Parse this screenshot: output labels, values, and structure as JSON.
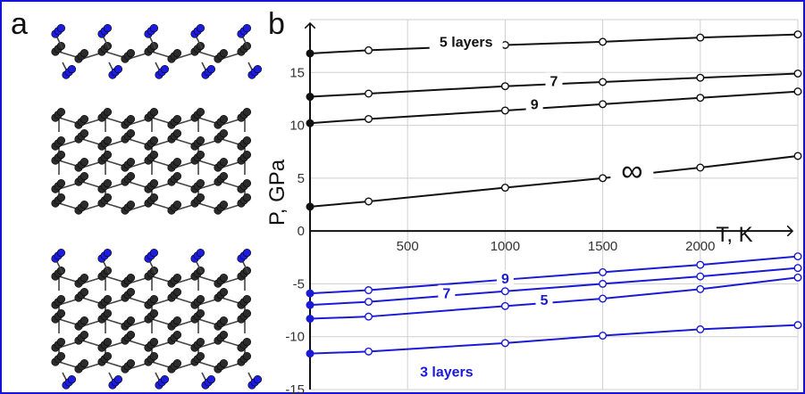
{
  "panels": {
    "a": "a",
    "b": "b"
  },
  "colors": {
    "black": "#111111",
    "blue": "#1a1ad6",
    "grid": "#cfcfcf",
    "frame": "#1414d8",
    "atom_black": "#2b2b2b",
    "atom_blue": "#1c1ce0"
  },
  "structure_icons": [
    "diamane-slab-icon",
    "diamond-bulk-icon",
    "diamane-slab-icon"
  ],
  "chart_data": {
    "type": "line",
    "xlabel": "T, K",
    "ylabel": "P, GPa",
    "xlim": [
      0,
      2500
    ],
    "ylim": [
      -15,
      20
    ],
    "xticks": [
      500,
      1000,
      1500,
      2000
    ],
    "yticks": [
      -15,
      -10,
      -5,
      0,
      5,
      10,
      15
    ],
    "grid": true,
    "series": [
      {
        "name": "5 layers",
        "color": "#111111",
        "x": [
          0,
          300,
          1000,
          1500,
          2000,
          2500
        ],
        "y": [
          16.8,
          17.1,
          17.6,
          17.9,
          18.3,
          18.6
        ]
      },
      {
        "name": "7",
        "color": "#111111",
        "x": [
          0,
          300,
          1000,
          1500,
          2000,
          2500
        ],
        "y": [
          12.7,
          13.0,
          13.7,
          14.1,
          14.5,
          14.9
        ]
      },
      {
        "name": "9",
        "color": "#111111",
        "x": [
          0,
          300,
          1000,
          1500,
          2000,
          2500
        ],
        "y": [
          10.2,
          10.6,
          11.4,
          12.0,
          12.6,
          13.2
        ]
      },
      {
        "name": "∞",
        "color": "#111111",
        "x": [
          0,
          300,
          1000,
          1500,
          2000,
          2500
        ],
        "y": [
          2.3,
          2.8,
          4.1,
          5.0,
          6.0,
          7.1
        ]
      },
      {
        "name": "9",
        "color": "#1a1ad6",
        "x": [
          0,
          300,
          1000,
          1500,
          2000,
          2500
        ],
        "y": [
          -5.9,
          -5.6,
          -4.6,
          -3.9,
          -3.2,
          -2.4
        ]
      },
      {
        "name": "7",
        "color": "#1a1ad6",
        "x": [
          0,
          300,
          1000,
          1500,
          2000,
          2500
        ],
        "y": [
          -7.0,
          -6.7,
          -5.7,
          -5.0,
          -4.3,
          -3.5
        ]
      },
      {
        "name": "5",
        "color": "#1a1ad6",
        "x": [
          0,
          300,
          1000,
          1500,
          2000,
          2500
        ],
        "y": [
          -8.3,
          -8.1,
          -7.1,
          -6.4,
          -5.5,
          -4.4
        ]
      },
      {
        "name": "3 layers",
        "color": "#1a1ad6",
        "x": [
          0,
          300,
          1000,
          1500,
          2000,
          2500
        ],
        "y": [
          -11.6,
          -11.4,
          -10.6,
          -9.9,
          -9.3,
          -8.9
        ]
      }
    ]
  }
}
